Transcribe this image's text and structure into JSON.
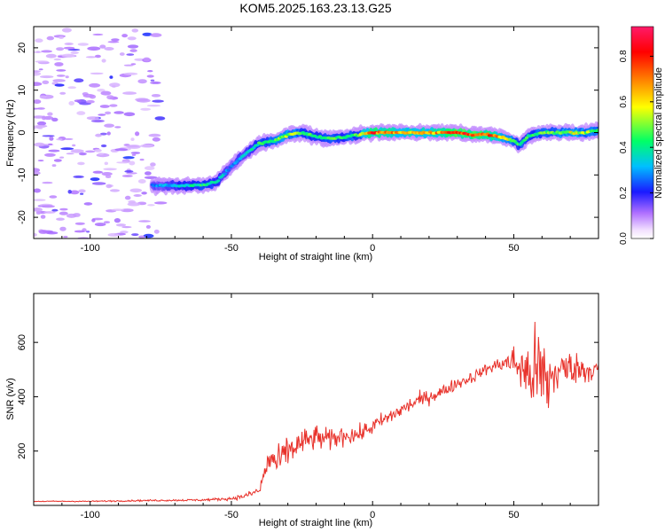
{
  "title": "KOM5.2025.163.23.13.G25",
  "chart_data": [
    {
      "type": "heatmap",
      "xlabel": "Height of straight line (km)",
      "ylabel": "Frequency (Hz)",
      "xlim": [
        -120,
        80
      ],
      "ylim": [
        -25,
        25
      ],
      "xticks": [
        -100,
        -50,
        0,
        50
      ],
      "yticks": [
        -20,
        -10,
        0,
        10,
        20
      ],
      "colorbar": {
        "label": "Normalized spectral amplitude",
        "range": [
          0,
          0.93
        ],
        "ticks": [
          0.0,
          0.2,
          0.4,
          0.6,
          0.8
        ],
        "colormap": [
          "#ffffff",
          "#d9a6ff",
          "#8a2be2",
          "#1a1aff",
          "#00bfff",
          "#00ff66",
          "#ffff00",
          "#ff8000",
          "#ff0000",
          "#ff1a6a"
        ]
      },
      "ridge": {
        "x": [
          -78,
          -70,
          -60,
          -55,
          -50,
          -45,
          -40,
          -35,
          -30,
          -25,
          -20,
          -15,
          -10,
          -5,
          0,
          5,
          10,
          15,
          20,
          25,
          30,
          35,
          40,
          45,
          50,
          52,
          55,
          60,
          65,
          70,
          75,
          80
        ],
        "freq": [
          -12.5,
          -12.5,
          -12.5,
          -11.5,
          -8,
          -5,
          -2.5,
          -2,
          -0.5,
          0,
          -1,
          -1.5,
          -1,
          -0.5,
          0,
          0,
          0,
          0,
          0,
          0,
          0,
          -0.5,
          -0.5,
          -1,
          -2,
          -3,
          -1,
          0,
          0,
          0,
          0,
          0.5
        ],
        "amp": [
          0.3,
          0.35,
          0.45,
          0.4,
          0.3,
          0.35,
          0.45,
          0.5,
          0.55,
          0.5,
          0.45,
          0.5,
          0.45,
          0.5,
          0.8,
          0.75,
          0.7,
          0.7,
          0.7,
          0.75,
          0.85,
          0.85,
          0.8,
          0.7,
          0.5,
          0.45,
          0.45,
          0.5,
          0.5,
          0.6,
          0.55,
          0.5
        ]
      }
    },
    {
      "type": "line",
      "xlabel": "Height of straight line (km)",
      "ylabel": "SNR (v/v)",
      "xlim": [
        -120,
        80
      ],
      "ylim": [
        0,
        780
      ],
      "xticks": [
        -100,
        -50,
        0,
        50
      ],
      "yticks": [
        200,
        400,
        600
      ],
      "color": "#e8312a",
      "x": [
        -120,
        -100,
        -80,
        -60,
        -50,
        -45,
        -40,
        -38,
        -36,
        -34,
        -30,
        -25,
        -20,
        -15,
        -10,
        -5,
        0,
        5,
        10,
        15,
        20,
        25,
        30,
        35,
        40,
        45,
        50,
        55,
        58,
        60,
        62,
        65,
        70,
        75,
        80
      ],
      "y": [
        15,
        15,
        18,
        20,
        25,
        35,
        55,
        130,
        180,
        150,
        200,
        230,
        250,
        240,
        260,
        260,
        290,
        320,
        350,
        380,
        400,
        420,
        450,
        470,
        500,
        520,
        530,
        480,
        500,
        470,
        450,
        490,
        510,
        500,
        500
      ],
      "noise": [
        2,
        2,
        3,
        4,
        6,
        10,
        18,
        40,
        60,
        55,
        60,
        50,
        45,
        40,
        35,
        30,
        30,
        30,
        28,
        28,
        26,
        24,
        22,
        22,
        20,
        25,
        60,
        120,
        170,
        180,
        150,
        80,
        60,
        50,
        40
      ]
    }
  ]
}
